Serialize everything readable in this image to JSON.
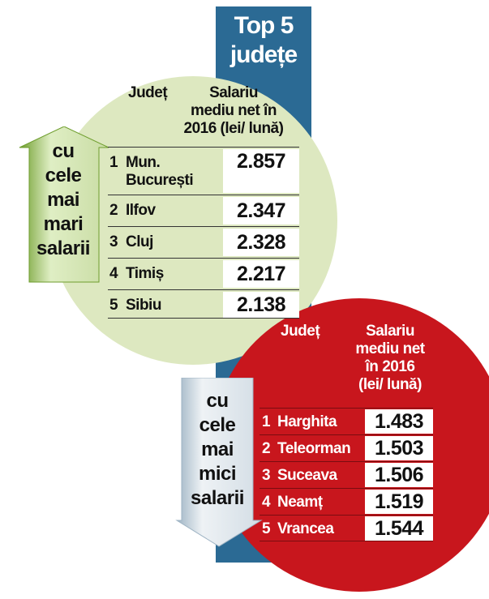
{
  "title": "Top 5 județe",
  "top": {
    "arrow_label": "cu cele mai mari salarii",
    "col_county": "Județ",
    "col_salary": "Salariu mediu net în 2016 (lei/ lună)",
    "rows": [
      {
        "rank": "1",
        "county": "Mun. București",
        "salary": "2.857"
      },
      {
        "rank": "2",
        "county": "Ilfov",
        "salary": "2.347"
      },
      {
        "rank": "3",
        "county": "Cluj",
        "salary": "2.328"
      },
      {
        "rank": "4",
        "county": "Timiș",
        "salary": "2.217"
      },
      {
        "rank": "5",
        "county": "Sibiu",
        "salary": "2.138"
      }
    ]
  },
  "bottom": {
    "arrow_label": "cu cele mai mici salarii",
    "col_county": "Județ",
    "col_salary": "Salariu mediu net în 2016 (lei/ lună)",
    "rows": [
      {
        "rank": "1",
        "county": "Harghita",
        "salary": "1.483"
      },
      {
        "rank": "2",
        "county": "Teleorman",
        "salary": "1.503"
      },
      {
        "rank": "3",
        "county": "Suceava",
        "salary": "1.506"
      },
      {
        "rank": "4",
        "county": "Neamț",
        "salary": "1.519"
      },
      {
        "rank": "5",
        "county": "Vrancea",
        "salary": "1.544"
      }
    ]
  },
  "colors": {
    "banner": "#2b6a94",
    "green_circle": "#dde8c0",
    "red_circle": "#c8161d",
    "arrow_up_green": "#7aa83a",
    "arrow_down_grey": "#b8c8d4"
  }
}
